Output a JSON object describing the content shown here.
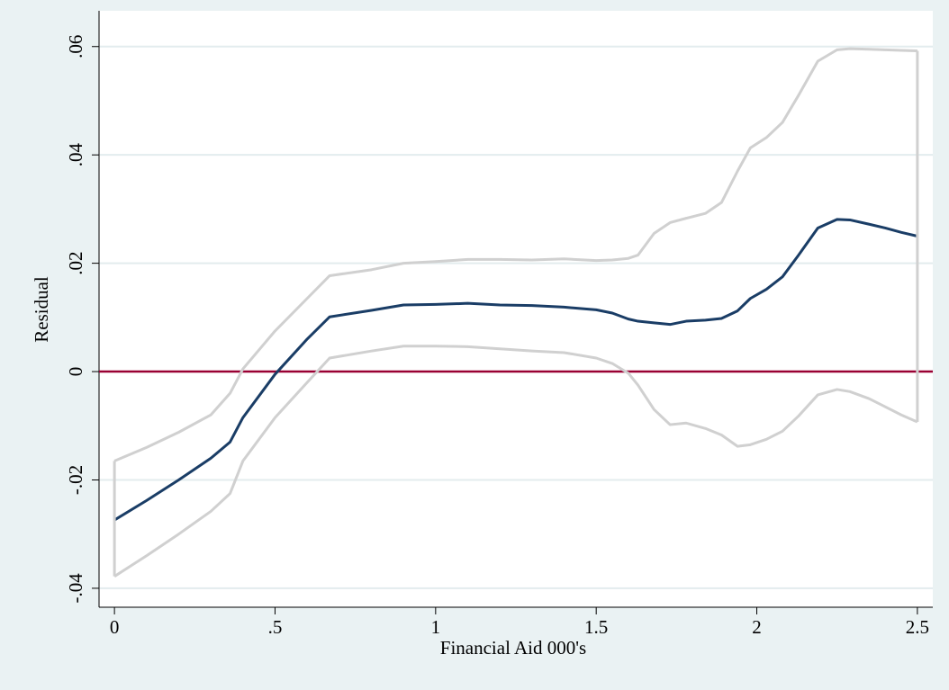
{
  "chart_data": {
    "type": "line",
    "x_label": "Financial Aid 000's",
    "y_label": "Residual",
    "x": [
      0,
      0.1,
      0.2,
      0.3,
      0.36,
      0.4,
      0.5,
      0.6,
      0.67,
      0.8,
      0.9,
      1,
      1.1,
      1.2,
      1.3,
      1.4,
      1.5,
      1.55,
      1.6,
      1.63,
      1.68,
      1.73,
      1.78,
      1.84,
      1.89,
      1.94,
      1.98,
      2.03,
      2.08,
      2.13,
      2.19,
      2.25,
      2.29,
      2.35,
      2.4,
      2.45,
      2.5
    ],
    "series": [
      {
        "color": "#d0d0d0",
        "band": "upper",
        "values": [
          -0.0165,
          -0.014,
          -0.0112,
          -0.008,
          -0.004,
          0.0005,
          0.0075,
          0.0135,
          0.0177,
          0.0188,
          0.02,
          0.0203,
          0.0207,
          0.0207,
          0.0206,
          0.0208,
          0.0205,
          0.0206,
          0.0209,
          0.0215,
          0.0255,
          0.0275,
          0.0283,
          0.0292,
          0.0312,
          0.037,
          0.0413,
          0.0432,
          0.046,
          0.051,
          0.0573,
          0.0594,
          0.0596,
          0.0595,
          0.0594,
          0.0593,
          0.0592
        ]
      },
      {
        "color": "#d0d0d0",
        "band": "lower",
        "values": [
          -0.0378,
          -0.034,
          -0.03,
          -0.0258,
          -0.0225,
          -0.0165,
          -0.0085,
          -0.002,
          0.0025,
          0.0038,
          0.0047,
          0.0047,
          0.0046,
          0.0042,
          0.0038,
          0.0035,
          0.0025,
          0.0015,
          -0.0003,
          -0.0025,
          -0.007,
          -0.0098,
          -0.0095,
          -0.0105,
          -0.0117,
          -0.0138,
          -0.0135,
          -0.0125,
          -0.011,
          -0.0082,
          -0.0043,
          -0.0033,
          -0.0037,
          -0.005,
          -0.0065,
          -0.008,
          -0.0093
        ]
      },
      {
        "color": "#1a3d66",
        "values": [
          -0.0274,
          -0.0238,
          -0.02,
          -0.016,
          -0.013,
          -0.0085,
          -0.0005,
          0.006,
          0.0101,
          0.0113,
          0.0123,
          0.0124,
          0.0126,
          0.0123,
          0.0122,
          0.0119,
          0.0114,
          0.0108,
          0.0097,
          0.0093,
          0.009,
          0.0087,
          0.0093,
          0.0095,
          0.0098,
          0.0112,
          0.0135,
          0.0152,
          0.0175,
          0.0215,
          0.0265,
          0.0281,
          0.028,
          0.0272,
          0.0265,
          0.0257,
          0.025
        ]
      }
    ],
    "reference_line": {
      "value": 0,
      "color": "#990033"
    },
    "xlim": [
      -0.048,
      2.548
    ],
    "ylim": [
      -0.0435,
      0.0666
    ],
    "xticks": [
      0,
      {
        "value": 0.5,
        "label": ".5"
      },
      1,
      1.5,
      2,
      2.5
    ],
    "yticks": [
      {
        "value": -0.04,
        "label": "-.04"
      },
      {
        "value": -0.02,
        "label": "-.02"
      },
      0,
      {
        "value": 0.02,
        "label": ".02"
      },
      {
        "value": 0.04,
        "label": ".04"
      },
      {
        "value": 0.06,
        "label": ".06"
      }
    ],
    "grid": true,
    "grid_color": "#e3ecee"
  }
}
